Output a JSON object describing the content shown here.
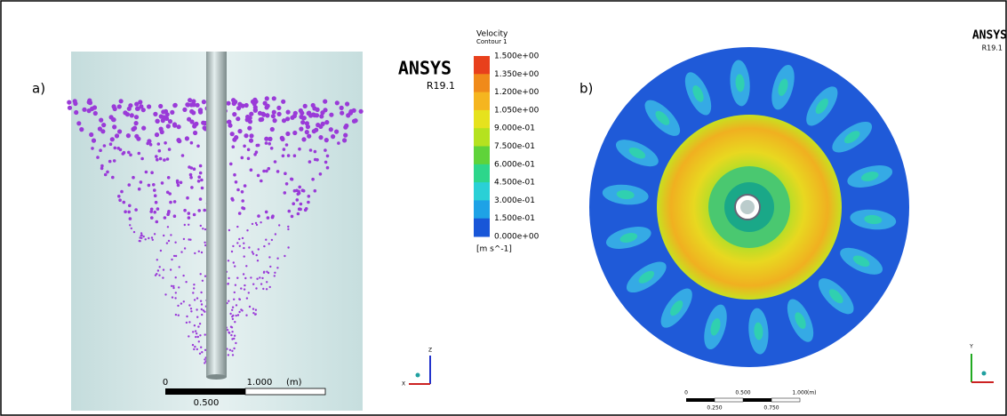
{
  "panel_a": {
    "label": "a)",
    "scale_bar": {
      "start": "0",
      "end": "1.000",
      "unit": "(m)",
      "mid": "0.500"
    },
    "triad": {
      "up": "Z",
      "left": "X"
    }
  },
  "legend": {
    "brand": "ANSYS",
    "version": "R19.1",
    "title": "Velocity",
    "subtitle": "Contour 1",
    "labels": [
      "1.500e+00",
      "1.350e+00",
      "1.200e+00",
      "1.050e+00",
      "9.000e-01",
      "7.500e-01",
      "6.000e-01",
      "4.500e-01",
      "3.000e-01",
      "1.500e-01",
      "0.000e+00"
    ],
    "unit": "[m s^-1]"
  },
  "panel_b": {
    "label": "b)",
    "brand": "ANSYS",
    "version": "R19.1",
    "scale_bar": {
      "start": "0",
      "q1": "0.500",
      "end": "1.000",
      "unit": "(m)",
      "low1": "0.250",
      "low2": "0.750"
    },
    "triad": {
      "up": "Y"
    }
  }
}
